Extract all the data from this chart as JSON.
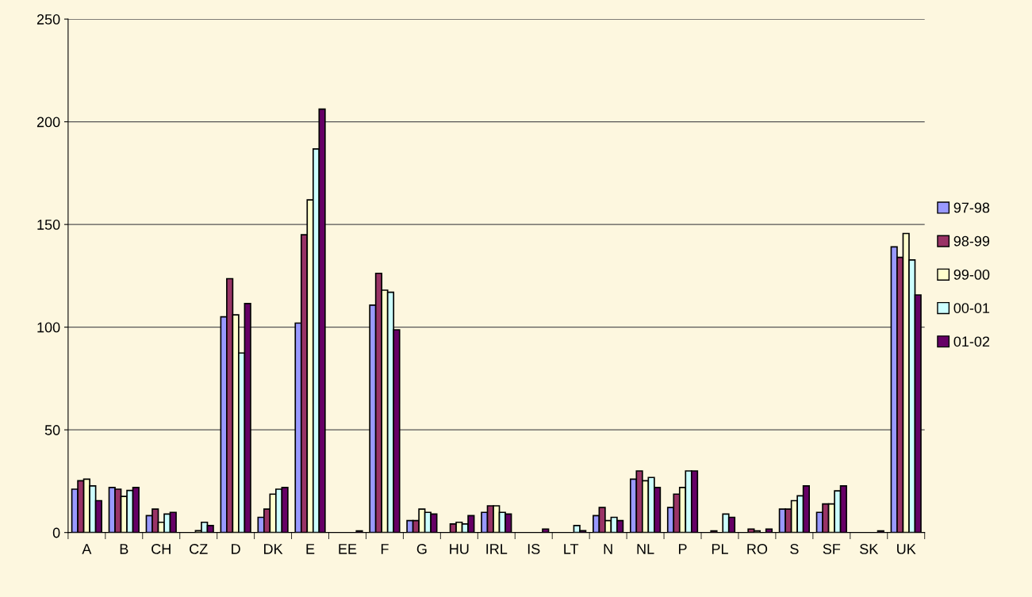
{
  "chart_data": {
    "type": "bar",
    "categories": [
      "A",
      "B",
      "CH",
      "CZ",
      "D",
      "DK",
      "E",
      "EE",
      "F",
      "G",
      "HU",
      "IRL",
      "IS",
      "LT",
      "N",
      "NL",
      "P",
      "PL",
      "RO",
      "S",
      "SF",
      "SK",
      "UK"
    ],
    "series": [
      {
        "name": "97-98",
        "color": "#9999ff",
        "values": [
          21.1,
          21.9,
          8.2,
          null,
          105,
          7.4,
          102,
          null,
          110.7,
          5.8,
          null,
          9.8,
          null,
          null,
          8.2,
          26,
          12.2,
          null,
          null,
          11.4,
          9.8,
          null,
          139.1
        ]
      },
      {
        "name": "98-99",
        "color": "#993366",
        "values": [
          25.2,
          21.1,
          11.4,
          null,
          123.6,
          11.4,
          145,
          null,
          126.2,
          5.8,
          4.2,
          13,
          null,
          null,
          12.2,
          30,
          18.7,
          0.8,
          1.7,
          11.4,
          13.9,
          null,
          134
        ]
      },
      {
        "name": "99-00",
        "color": "#ffffcc",
        "values": [
          26,
          17.6,
          5,
          0.9,
          106,
          18.7,
          162,
          null,
          118,
          11.4,
          5,
          13,
          null,
          null,
          5.8,
          25.2,
          21.9,
          null,
          0.8,
          15.5,
          13.9,
          null,
          145.6
        ]
      },
      {
        "name": "00-01",
        "color": "#ccffff",
        "values": [
          22.7,
          20.5,
          9,
          5,
          87.4,
          21.1,
          186.8,
          null,
          117,
          9.8,
          4.2,
          9.8,
          null,
          3.4,
          7.4,
          26.8,
          30,
          9,
          null,
          17.9,
          20.3,
          null,
          132.7
        ]
      },
      {
        "name": "01-02",
        "color": "#660066",
        "values": [
          15.5,
          21.9,
          9.8,
          3.4,
          111.5,
          21.9,
          206.2,
          0.8,
          98.7,
          9,
          8.2,
          9,
          1.7,
          0.9,
          5.8,
          21.9,
          30,
          7.4,
          1.7,
          22.7,
          22.7,
          0.8,
          115.7
        ]
      }
    ],
    "ylim": [
      0,
      250
    ],
    "yticks": [
      0,
      50,
      100,
      150,
      200,
      250
    ],
    "grid": "y",
    "legend": "right"
  }
}
